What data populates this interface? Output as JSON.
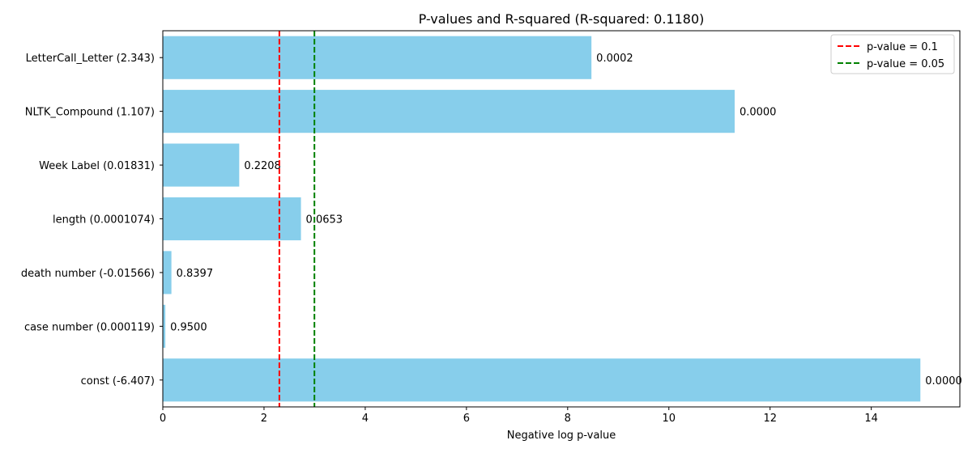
{
  "chart_data": {
    "type": "bar",
    "orientation": "horizontal",
    "title": "P-values and R-squared (R-squared: 0.1180)",
    "xlabel": "Negative log p-value",
    "ylabel": "",
    "xlim": [
      0,
      15.75
    ],
    "xticks": [
      0,
      2,
      4,
      6,
      8,
      10,
      12,
      14
    ],
    "xtick_labels": [
      "0",
      "2",
      "4",
      "6",
      "8",
      "10",
      "12",
      "14"
    ],
    "grid": false,
    "bar_color": "#87ceeb",
    "categories": [
      "LetterCall_Letter (2.343)",
      "NLTK_Compound (1.107)",
      "Week Label (0.01831)",
      "length (0.0001074)",
      "death number (-0.01566)",
      "case number (0.000119)",
      "const (-6.407)"
    ],
    "values": [
      8.47,
      11.3,
      1.51,
      2.73,
      0.17,
      0.05,
      14.97
    ],
    "data_labels": [
      "0.0002",
      "0.0000",
      "0.2208",
      "0.0653",
      "0.8397",
      "0.9500",
      "0.0000"
    ],
    "reference_lines": [
      {
        "label": "p-value = 0.1",
        "x": 2.303,
        "color": "#ff0000",
        "style": "dashed"
      },
      {
        "label": "p-value = 0.05",
        "x": 2.996,
        "color": "#008000",
        "style": "dashed"
      }
    ],
    "legend": {
      "placement": "top-right"
    }
  }
}
